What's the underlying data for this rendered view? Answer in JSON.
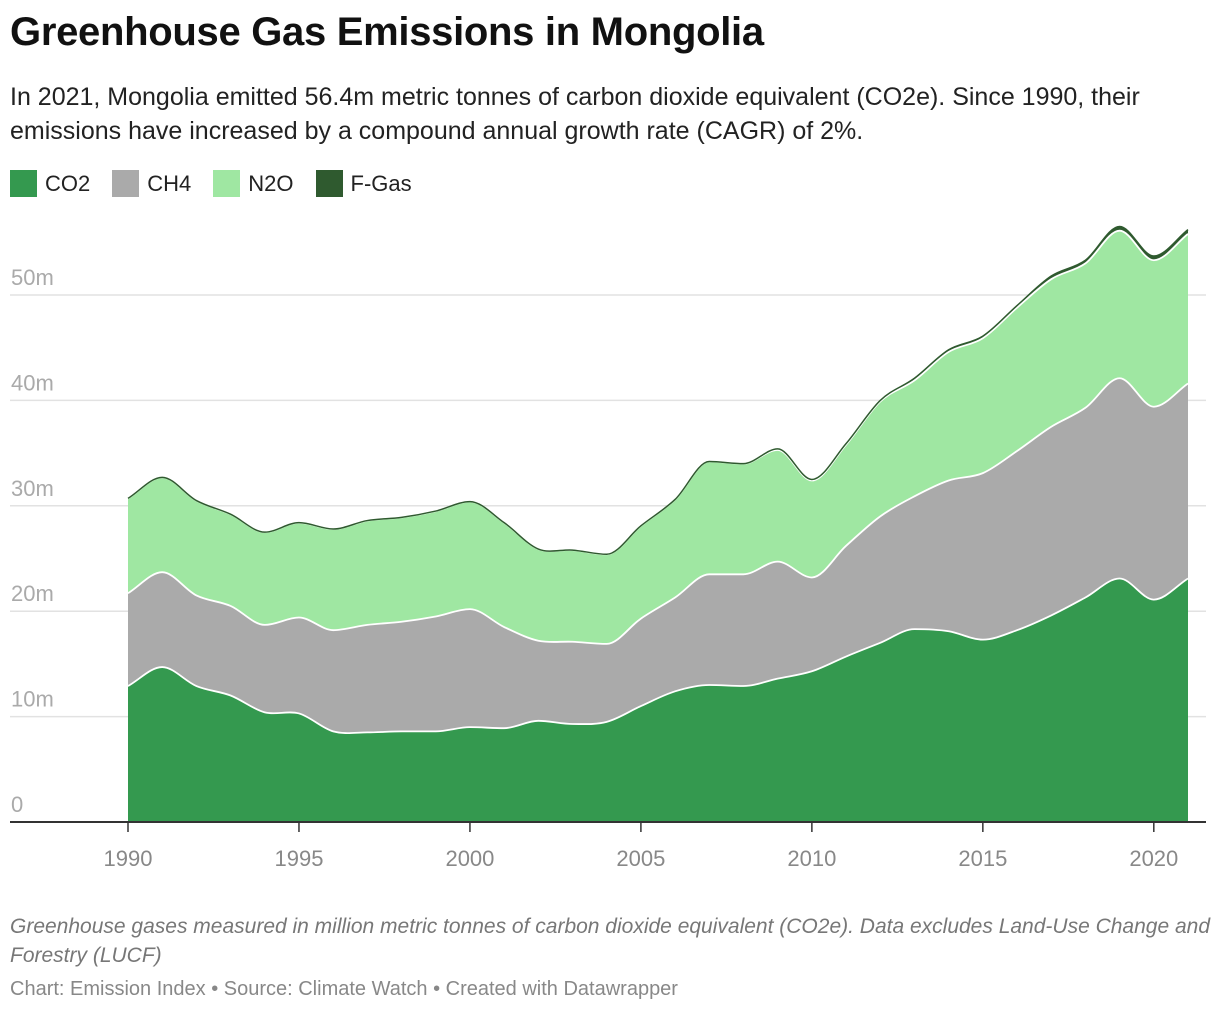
{
  "header": {
    "title": "Greenhouse Gas Emissions in Mongolia",
    "subtitle": "In 2021, Mongolia emitted 56.4m metric tonnes of carbon dioxide equivalent (CO2e). Since 1990, their emissions have increased by a compound annual growth rate (CAGR) of 2%."
  },
  "footer": {
    "note": "Greenhouse gases measured in million metric tonnes of carbon dioxide equivalent (CO2e). Data excludes Land-Use Change and Forestry (LUCF)",
    "credits": "Chart: Emission Index • Source: Climate Watch • Created with Datawrapper"
  },
  "chart_data": {
    "type": "area",
    "stacked": true,
    "title": "Greenhouse Gas Emissions in Mongolia",
    "xlabel": "",
    "ylabel": "",
    "ylim": [
      0,
      57
    ],
    "y_ticks": [
      0,
      10,
      20,
      30,
      40,
      50
    ],
    "y_tick_labels": [
      "0",
      "10m",
      "20m",
      "30m",
      "40m",
      "50m"
    ],
    "x_ticks": [
      1990,
      1995,
      2000,
      2005,
      2010,
      2015,
      2020
    ],
    "x_tick_labels": [
      "1990",
      "1995",
      "2000",
      "2005",
      "2010",
      "2015",
      "2020"
    ],
    "grid": true,
    "legend_position": "top-left",
    "x": [
      1990,
      1991,
      1992,
      1993,
      1994,
      1995,
      1996,
      1997,
      1998,
      1999,
      2000,
      2001,
      2002,
      2003,
      2004,
      2005,
      2006,
      2007,
      2008,
      2009,
      2010,
      2011,
      2012,
      2013,
      2014,
      2015,
      2016,
      2017,
      2018,
      2019,
      2020,
      2021
    ],
    "series": [
      {
        "name": "CO2",
        "color": "#34994f",
        "values": [
          12.9,
          14.7,
          12.9,
          12.0,
          10.4,
          10.3,
          8.6,
          8.5,
          8.6,
          8.6,
          9.0,
          8.9,
          9.6,
          9.3,
          9.5,
          11.0,
          12.4,
          13.0,
          12.9,
          13.6,
          14.3,
          15.7,
          17.0,
          18.3,
          18.1,
          17.3,
          18.2,
          19.6,
          21.3,
          23.1,
          21.1,
          23.1
        ]
      },
      {
        "name": "CH4",
        "color": "#aaaaaa",
        "values": [
          8.8,
          9.0,
          8.6,
          8.5,
          8.3,
          9.1,
          9.6,
          10.2,
          10.4,
          10.9,
          11.2,
          9.6,
          7.6,
          7.8,
          7.4,
          8.3,
          8.9,
          10.5,
          10.6,
          11.1,
          8.9,
          10.5,
          12.0,
          12.6,
          14.3,
          15.8,
          17.0,
          17.9,
          18.0,
          19.0,
          18.3,
          18.5
        ]
      },
      {
        "name": "N2O",
        "color": "#9fe7a2",
        "values": [
          9.0,
          9.0,
          9.0,
          8.7,
          8.8,
          9.0,
          9.6,
          9.9,
          9.9,
          10.0,
          10.2,
          9.9,
          8.7,
          8.7,
          8.5,
          8.8,
          9.3,
          10.7,
          10.5,
          10.6,
          9.2,
          9.6,
          10.9,
          11.0,
          12.2,
          12.8,
          13.6,
          14.0,
          13.7,
          14.0,
          13.9,
          14.2
        ]
      },
      {
        "name": "F-Gas",
        "color": "#2f5a2f",
        "values": [
          0,
          0,
          0,
          0,
          0,
          0,
          0,
          0,
          0,
          0,
          0,
          0,
          0,
          0,
          0,
          0,
          0,
          0,
          0,
          0.1,
          0.1,
          0.1,
          0.1,
          0.2,
          0.2,
          0.2,
          0.2,
          0.3,
          0.3,
          0.4,
          0.4,
          0.4
        ]
      }
    ]
  }
}
